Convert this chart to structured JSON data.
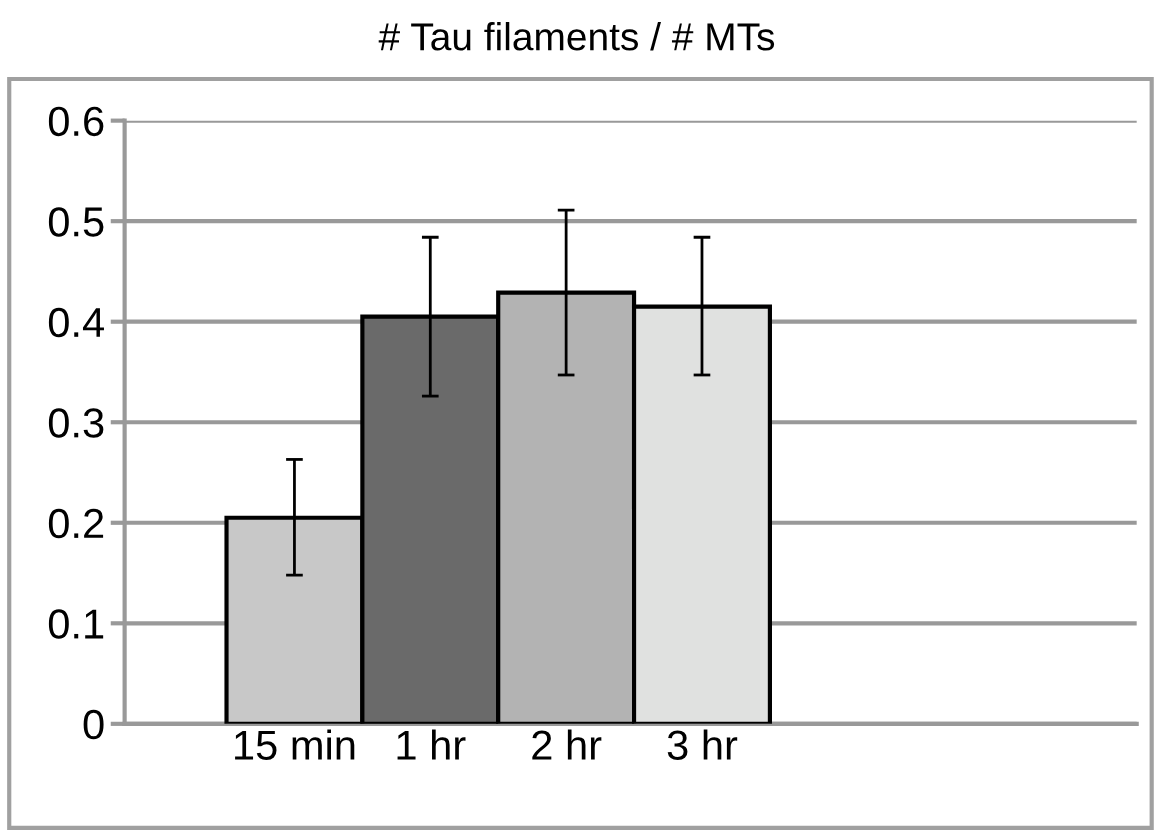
{
  "chart_data": {
    "type": "bar",
    "title": "# Tau filaments / # MTs",
    "categories": [
      "15 min",
      "1 hr",
      "2 hr",
      "3 hr"
    ],
    "values": [
      0.205,
      0.405,
      0.429,
      0.415
    ],
    "colors": [
      "#c8c8c8",
      "#6a6a6a",
      "#b3b3b3",
      "#e0e1e0"
    ],
    "errors": [
      [
        0.148,
        0.263
      ],
      [
        0.326,
        0.484
      ],
      [
        0.347,
        0.511
      ],
      [
        0.347,
        0.484
      ]
    ],
    "ylim": [
      0,
      0.6
    ],
    "yticks": [
      0,
      0.1,
      0.2,
      0.3,
      0.4,
      0.5,
      0.6
    ],
    "grid": "y"
  }
}
